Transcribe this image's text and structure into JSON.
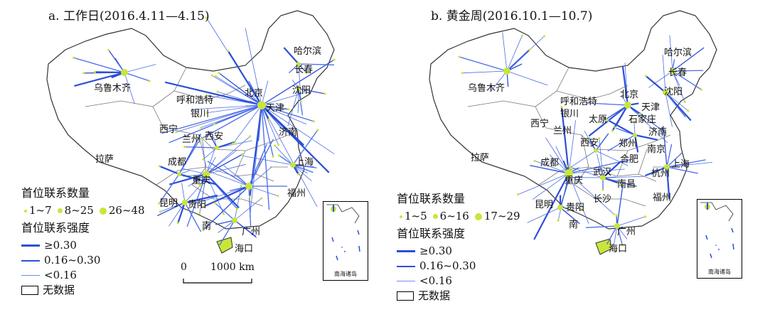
{
  "panels": [
    {
      "id": "a",
      "title": "a. 工作日(2016.4.11—4.15)",
      "legend": {
        "count_title": "首位联系数量",
        "count_classes": [
          "1~7",
          "8~25",
          "26~48"
        ],
        "strength_title": "首位联系强度",
        "strength_classes": [
          "≥0.30",
          "0.16~0.30",
          "<0.16"
        ],
        "nodata": "无数据"
      },
      "scale": {
        "zero": "0",
        "dist": "1000 km"
      },
      "inset_caption": "南海诸岛"
    },
    {
      "id": "b",
      "title": "b. 黄金周(2016.10.1—10.7)",
      "legend": {
        "count_title": "首位联系数量",
        "count_classes": [
          "1~5",
          "6~16",
          "17~29"
        ],
        "strength_title": "首位联系强度",
        "strength_classes": [
          "≥0.30",
          "0.16~0.30",
          "<0.16"
        ],
        "nodata": "无数据"
      },
      "inset_caption": "南海诸岛"
    }
  ],
  "cities": {
    "haerbin": "哈尔滨",
    "changchun": "长春",
    "shenyang": "沈阳",
    "wulumuqi": "乌鲁木齐",
    "huhehaote": "呼和浩特",
    "beijing": "北京",
    "tianjin": "天津",
    "yinchuan": "银川",
    "xining": "西宁",
    "lanzhou": "兰州",
    "xian": "西安",
    "jinan": "济南",
    "lasa": "拉萨",
    "chengdu": "成都",
    "chongqing": "重庆",
    "shanghai": "上海",
    "fuzhou": "福州",
    "kunming": "昆明",
    "guiyang": "贵阳",
    "nanning": "南",
    "guangzhou": "广州",
    "haikou": "海口",
    "taiyuan": "太原",
    "shijiazhuang": "石家庄",
    "zhengzhou": "郑州",
    "nanjing": "南京",
    "hefei": "合肥",
    "wuhan": "武汉",
    "hangzhou": "杭州",
    "nanchang": "南昌",
    "changsha": "长沙"
  },
  "colors": {
    "link": "#2d4fd6",
    "node": "#c8e63a",
    "border": "#555555"
  }
}
